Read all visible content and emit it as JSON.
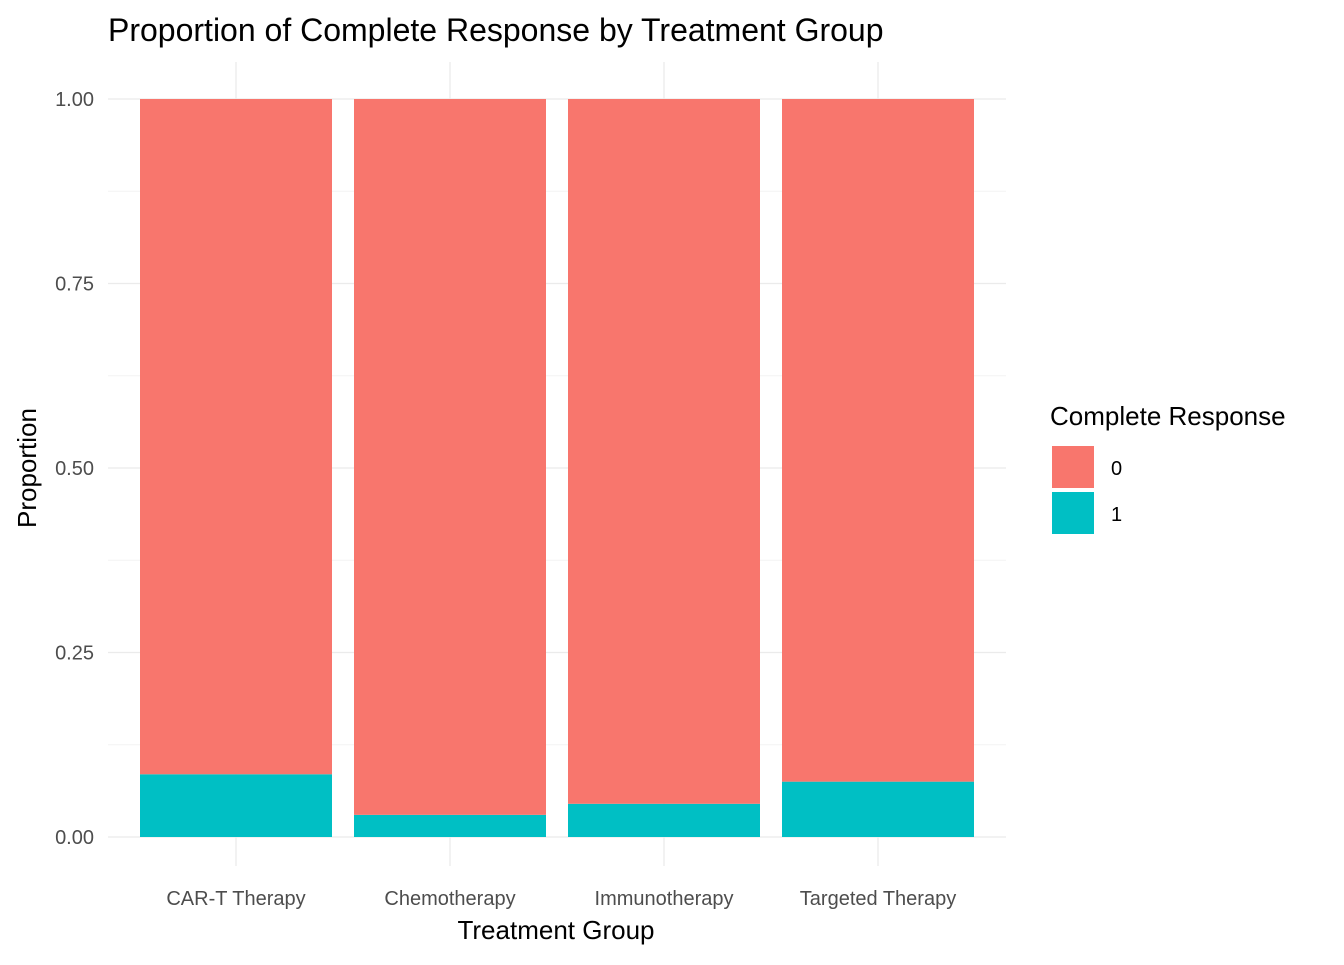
{
  "chart_data": {
    "type": "bar",
    "stacked": true,
    "title": "Proportion of Complete Response by Treatment Group",
    "xlabel": "Treatment Group",
    "ylabel": "Proportion",
    "categories": [
      "CAR-T Therapy",
      "Chemotherapy",
      "Immunotherapy",
      "Targeted Therapy"
    ],
    "series": [
      {
        "name": "0",
        "color": "#F8766D",
        "values": [
          0.915,
          0.97,
          0.955,
          0.925
        ]
      },
      {
        "name": "1",
        "color": "#00BFC4",
        "values": [
          0.085,
          0.03,
          0.045,
          0.075
        ]
      }
    ],
    "ylim": [
      0,
      1
    ],
    "yticks": [
      0,
      0.25,
      0.5,
      0.75,
      1
    ],
    "ytick_labels": [
      "0.00",
      "0.25",
      "0.50",
      "0.75",
      "1.00"
    ],
    "grid": true,
    "legend": {
      "title": "Complete Response",
      "placement": "right"
    }
  }
}
